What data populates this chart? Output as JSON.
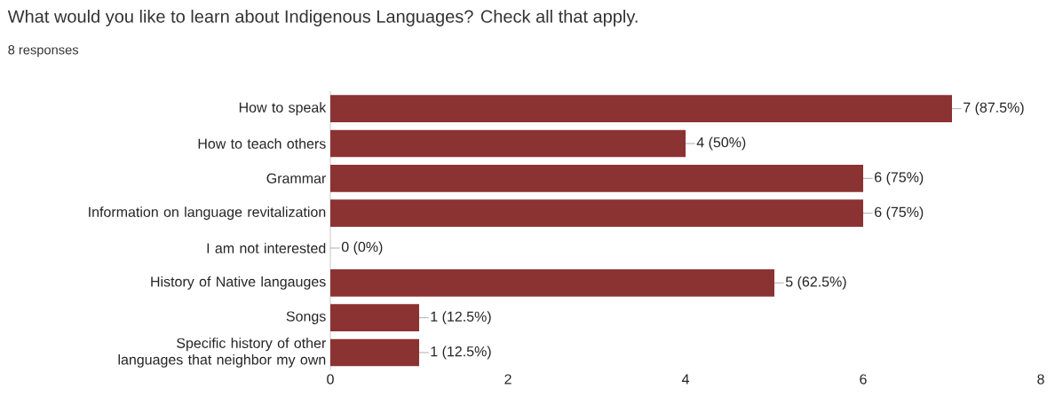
{
  "chart_data": {
    "type": "bar",
    "orientation": "horizontal",
    "title": "What would you like to learn about Indigenous Languages? Check all that apply.",
    "subtitle": "8 responses",
    "categories": [
      "How to speak",
      "How to teach others",
      "Grammar",
      "Information on language revitalization",
      "I am not interested",
      "History of Native langauges",
      "Songs",
      "Specific history of other languages that neighbor my own"
    ],
    "values": [
      7,
      4,
      6,
      6,
      0,
      5,
      1,
      1
    ],
    "value_labels": [
      "7 (87.5%)",
      "4 (50%)",
      "6 (75%)",
      "6 (75%)",
      "0 (0%)",
      "5 (62.5%)",
      "1 (12.5%)",
      "1 (12.5%)"
    ],
    "color": "#8b3232",
    "xlim": [
      0,
      8
    ],
    "xticks": [
      0,
      2,
      4,
      6,
      8
    ]
  }
}
